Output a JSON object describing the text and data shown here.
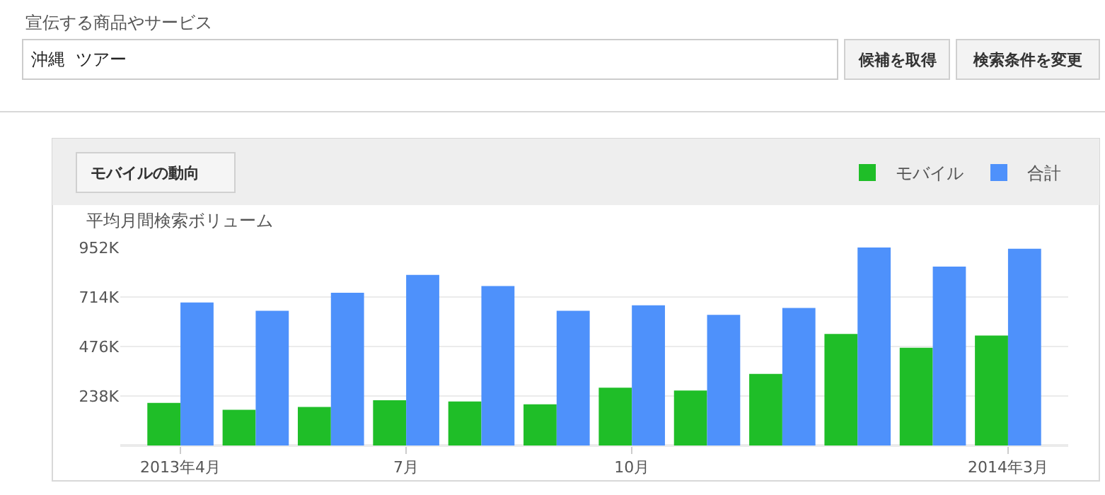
{
  "chart_data": {
    "type": "bar",
    "ylabel": "平均月間検索ボリューム",
    "annotations": [
      "宣伝する商品やサービス",
      "沖縄  ツアー",
      "候補を取得",
      "検索条件を変更",
      "モバイルの動向"
    ],
    "categories": [
      "2013年4月",
      null,
      null,
      "7月",
      null,
      null,
      "10月",
      null,
      null,
      null,
      null,
      "2014年3月"
    ],
    "series": [
      {
        "name": "モバイル",
        "color": "#1fbe28",
        "values": [
          205000,
          172000,
          185000,
          218000,
          212000,
          198000,
          278000,
          264000,
          344000,
          536000,
          470000,
          529000
        ]
      },
      {
        "name": "合計",
        "color": "#4e91fb",
        "values": [
          688000,
          648000,
          734000,
          820000,
          767000,
          648000,
          674000,
          628000,
          661000,
          952000,
          860000,
          946000
        ]
      }
    ],
    "ylim": [
      0,
      952000
    ],
    "yticks": [
      {
        "value": 238000,
        "label": "238K"
      },
      {
        "value": 476000,
        "label": "476K"
      },
      {
        "value": 714000,
        "label": "714K"
      },
      {
        "value": 952000,
        "label": "952K"
      }
    ],
    "grid": "y",
    "legend": "top right"
  }
}
